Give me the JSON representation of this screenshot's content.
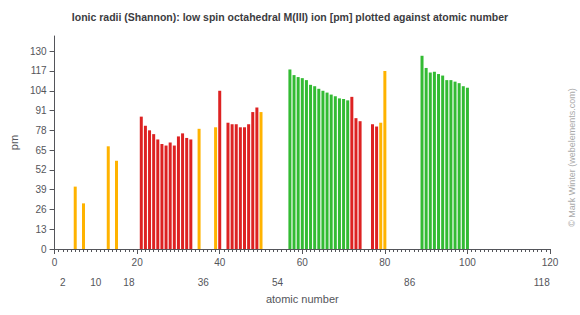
{
  "chart_data": {
    "type": "bar",
    "title": "Ionic radii (Shannon): low spin octahedral M(III) ion [pm] plotted against atomic number",
    "ylabel": "pm",
    "xlabel": "atomic number",
    "annotation": "© Mark Winter (webelements.com)",
    "x": [
      5,
      7,
      13,
      15,
      21,
      22,
      23,
      24,
      25,
      26,
      27,
      28,
      29,
      30,
      31,
      32,
      33,
      35,
      39,
      40,
      42,
      43,
      44,
      45,
      46,
      47,
      48,
      49,
      50,
      57,
      58,
      59,
      60,
      61,
      62,
      63,
      64,
      65,
      66,
      67,
      68,
      69,
      70,
      71,
      72,
      73,
      74,
      77,
      78,
      79,
      80,
      89,
      90,
      91,
      92,
      93,
      94,
      95,
      96,
      97,
      98,
      99,
      100
    ],
    "values": [
      41,
      30,
      67.5,
      58,
      87,
      81,
      78,
      75.5,
      72,
      69,
      68,
      70,
      68,
      74,
      76,
      73,
      72,
      79,
      80,
      104,
      83,
      82,
      82,
      80,
      80,
      82,
      90,
      93,
      90,
      118,
      114.3,
      113,
      112.3,
      111,
      107.9,
      107,
      105.3,
      104,
      102.8,
      101.5,
      100.4,
      99,
      98.6,
      97.7,
      100,
      86,
      84,
      82,
      80.5,
      83,
      117,
      127,
      119,
      116,
      116.5,
      115,
      114,
      111,
      111,
      110,
      109,
      107,
      106
    ],
    "colors": [
      "#FFB300",
      "#FFB300",
      "#FFB300",
      "#FFB300",
      "#dd2222",
      "#dd2222",
      "#dd2222",
      "#dd2222",
      "#dd2222",
      "#dd2222",
      "#dd2222",
      "#dd2222",
      "#dd2222",
      "#dd2222",
      "#dd2222",
      "#dd2222",
      "#dd2222",
      "#FFB300",
      "#FFB300",
      "#dd2222",
      "#dd2222",
      "#dd2222",
      "#dd2222",
      "#dd2222",
      "#dd2222",
      "#dd2222",
      "#dd2222",
      "#dd2222",
      "#FFB300",
      "#33bb33",
      "#33bb33",
      "#33bb33",
      "#33bb33",
      "#33bb33",
      "#33bb33",
      "#33bb33",
      "#33bb33",
      "#33bb33",
      "#33bb33",
      "#33bb33",
      "#33bb33",
      "#33bb33",
      "#33bb33",
      "#33bb33",
      "#dd2222",
      "#dd2222",
      "#dd2222",
      "#dd2222",
      "#dd2222",
      "#FFB300",
      "#FFB300",
      "#33bb33",
      "#33bb33",
      "#33bb33",
      "#33bb33",
      "#33bb33",
      "#33bb33",
      "#33bb33",
      "#33bb33",
      "#33bb33",
      "#33bb33",
      "#33bb33",
      "#33bb33"
    ],
    "xlim": [
      0,
      120
    ],
    "xticks": [
      0,
      20,
      40,
      60,
      80,
      100,
      120
    ],
    "x2lim": [
      0,
      120
    ],
    "x2ticks": [
      2,
      10,
      18,
      36,
      54,
      86,
      118
    ],
    "ylim": [
      0,
      140
    ],
    "yticks": [
      0,
      13,
      26,
      39,
      52,
      65,
      78,
      91,
      104,
      117,
      130
    ],
    "grid": false
  }
}
